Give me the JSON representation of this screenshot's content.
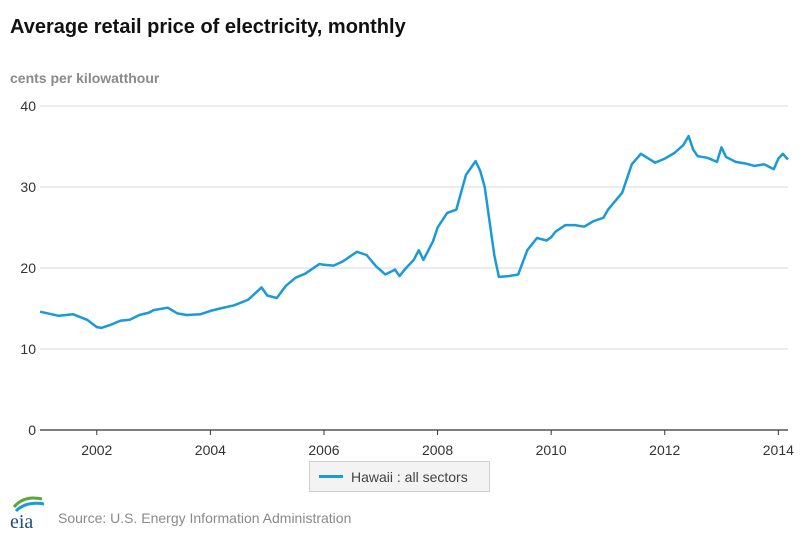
{
  "title": "Average retail price of electricity, monthly",
  "unit_label": "cents per kilowatthour",
  "source": "Source: U.S. Energy Information Administration",
  "logo_text": "eia",
  "colors": {
    "series": "#1a9ad6",
    "grid": "#d9d9d9",
    "axis": "#333333"
  },
  "chart_data": {
    "type": "line",
    "title": "Average retail price of electricity, monthly",
    "xlabel": "",
    "ylabel": "cents per kilowatthour",
    "ylim": [
      0,
      40
    ],
    "yticks": [
      0,
      10,
      20,
      30,
      40
    ],
    "xlim": [
      2001.0,
      2014.17
    ],
    "xticks": [
      2002,
      2004,
      2006,
      2008,
      2010,
      2012,
      2014
    ],
    "grid": true,
    "legend_position": "bottom",
    "series": [
      {
        "name": "Hawaii : all sectors",
        "x": [
          2001.0,
          2001.33,
          2001.58,
          2001.83,
          2002.0,
          2002.08,
          2002.25,
          2002.42,
          2002.58,
          2002.75,
          2002.92,
          2003.0,
          2003.25,
          2003.42,
          2003.58,
          2003.83,
          2004.0,
          2004.17,
          2004.42,
          2004.67,
          2004.9,
          2005.0,
          2005.17,
          2005.33,
          2005.5,
          2005.67,
          2005.92,
          2006.0,
          2006.17,
          2006.33,
          2006.58,
          2006.75,
          2006.92,
          2007.08,
          2007.25,
          2007.33,
          2007.42,
          2007.58,
          2007.67,
          2007.75,
          2007.92,
          2008.0,
          2008.17,
          2008.33,
          2008.5,
          2008.67,
          2008.75,
          2008.83,
          2009.0,
          2009.08,
          2009.25,
          2009.42,
          2009.58,
          2009.75,
          2009.92,
          2010.0,
          2010.08,
          2010.25,
          2010.42,
          2010.58,
          2010.75,
          2010.92,
          2011.0,
          2011.25,
          2011.42,
          2011.58,
          2011.83,
          2012.0,
          2012.17,
          2012.33,
          2012.42,
          2012.5,
          2012.58,
          2012.75,
          2012.92,
          2013.0,
          2013.08,
          2013.25,
          2013.42,
          2013.58,
          2013.75,
          2013.92,
          2014.0,
          2014.08,
          2014.17
        ],
        "values": [
          14.6,
          14.1,
          14.3,
          13.6,
          12.7,
          12.6,
          13.0,
          13.5,
          13.6,
          14.2,
          14.5,
          14.8,
          15.1,
          14.4,
          14.2,
          14.3,
          14.7,
          15.0,
          15.4,
          16.1,
          17.6,
          16.6,
          16.3,
          17.8,
          18.8,
          19.3,
          20.5,
          20.4,
          20.3,
          20.8,
          22.0,
          21.6,
          20.2,
          19.2,
          19.8,
          19.0,
          19.8,
          21.0,
          22.2,
          21.0,
          23.3,
          25.0,
          26.8,
          27.2,
          31.5,
          33.2,
          32.0,
          30.0,
          21.5,
          18.9,
          19.0,
          19.2,
          22.2,
          23.7,
          23.4,
          23.8,
          24.5,
          25.3,
          25.3,
          25.1,
          25.8,
          26.2,
          27.2,
          29.3,
          32.8,
          34.1,
          33.0,
          33.5,
          34.2,
          35.2,
          36.3,
          34.6,
          33.8,
          33.6,
          33.1,
          34.9,
          33.7,
          33.1,
          32.9,
          32.6,
          32.8,
          32.2,
          33.5,
          34.1,
          33.4
        ]
      }
    ]
  }
}
